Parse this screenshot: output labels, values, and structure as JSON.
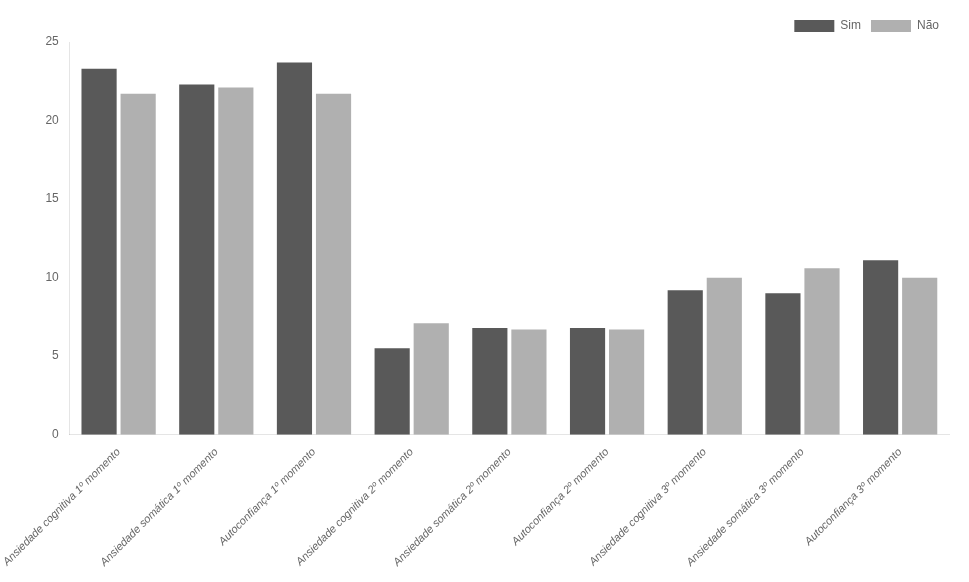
{
  "chart_data": {
    "type": "bar",
    "categories": [
      "Ansiedade cognitiva 1º momento",
      "Ansiedade somática 1º momento",
      "Autoconfiança 1º momento",
      "Ansiedade cognitiva 2º momento",
      "Ansiedade somática 2º momento",
      "Autoconfiança 2º momento",
      "Ansiedade cognitiva 3º momento",
      "Ansiedade somática 3º momento",
      "Autoconfiança 3º momento"
    ],
    "series": [
      {
        "name": "Sim",
        "color": "#595959",
        "values": [
          23.3,
          22.3,
          23.7,
          5.5,
          6.8,
          6.8,
          9.2,
          9.0,
          11.1
        ]
      },
      {
        "name": "Não",
        "color": "#B0B0B0",
        "values": [
          21.7,
          22.1,
          21.7,
          7.1,
          6.7,
          6.7,
          10.0,
          10.6,
          10.0
        ]
      }
    ],
    "ylim": [
      0,
      25
    ],
    "yticks": [
      0,
      5,
      10,
      15,
      20,
      25
    ],
    "grid": false,
    "legend": "upper right"
  }
}
